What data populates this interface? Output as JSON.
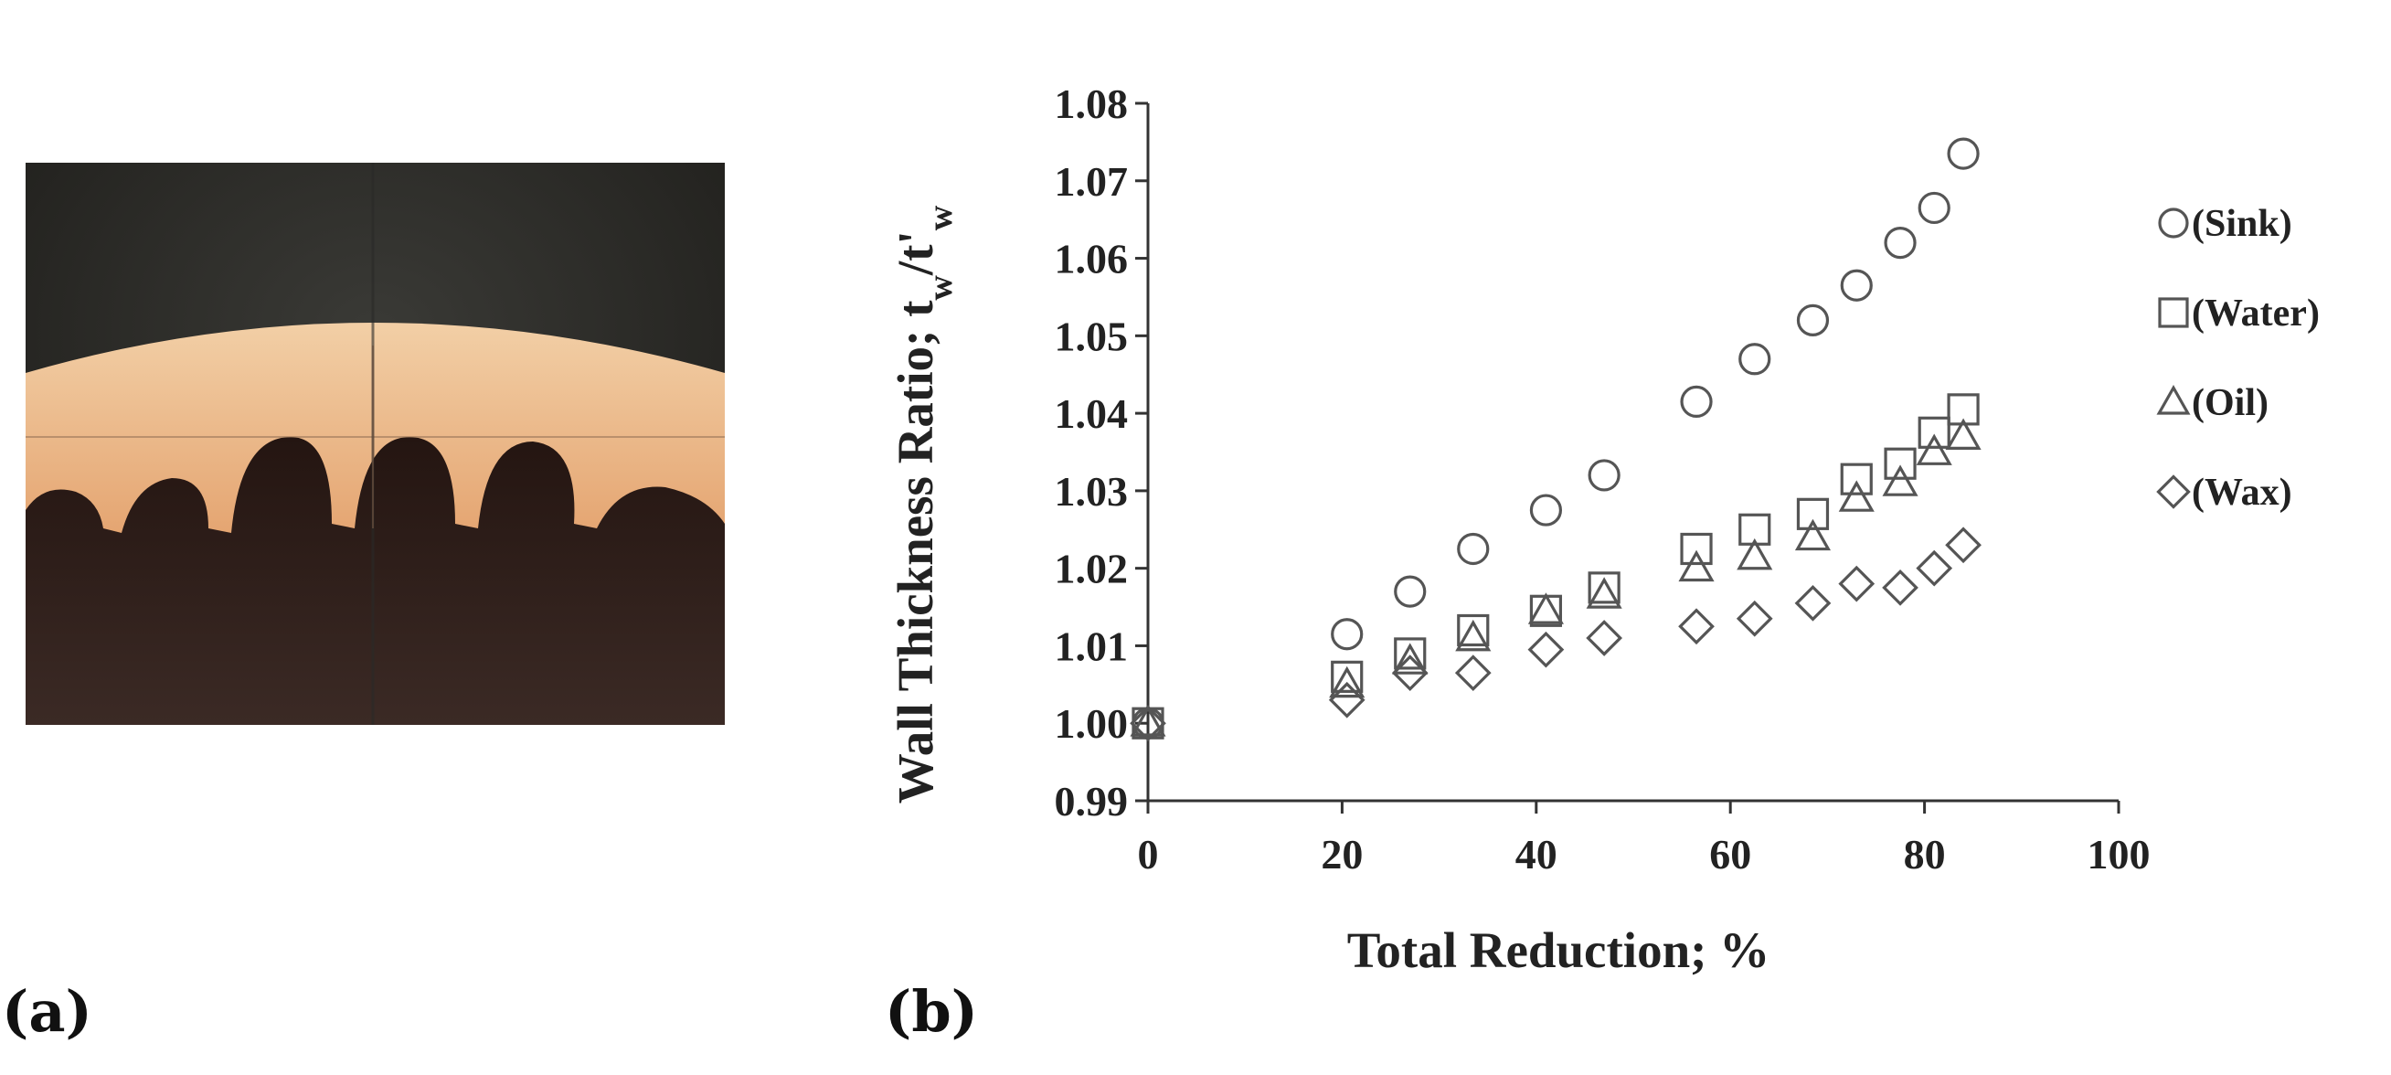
{
  "panels": {
    "a_label": "(a)",
    "b_label": "(b)"
  },
  "photo": {
    "description_icon": "gear-micrograph-image"
  },
  "chart_data": {
    "type": "scatter",
    "title": "",
    "xlabel": "Total Reduction; %",
    "ylabel_main": "Wall Thickness Ratio; t",
    "ylabel_sub1": "w",
    "ylabel_sep": "/t'",
    "ylabel_sub2": "w",
    "xlim": [
      0,
      100
    ],
    "ylim": [
      0.99,
      1.08
    ],
    "xticks": [
      0,
      20,
      40,
      60,
      80,
      100
    ],
    "yticks": [
      0.99,
      1.0,
      1.01,
      1.02,
      1.03,
      1.04,
      1.05,
      1.06,
      1.07,
      1.08
    ],
    "xtick_labels": [
      "0",
      "20",
      "40",
      "60",
      "80",
      "100"
    ],
    "ytick_labels": [
      "0.99",
      "1.00",
      "1.01",
      "1.02",
      "1.03",
      "1.04",
      "1.05",
      "1.06",
      "1.07",
      "1.08"
    ],
    "grid": false,
    "legend_position": "right",
    "series": [
      {
        "name": "(Sink)",
        "marker": "circle",
        "x": [
          0,
          20.5,
          27,
          33.5,
          41,
          47,
          56.5,
          62.5,
          68.5,
          73,
          77.5,
          81,
          84
        ],
        "y": [
          1.0,
          1.0115,
          1.017,
          1.0225,
          1.0275,
          1.032,
          1.0415,
          1.047,
          1.052,
          1.0565,
          1.062,
          1.0665,
          1.0735
        ]
      },
      {
        "name": "(Water)",
        "marker": "square",
        "x": [
          0,
          20.5,
          27,
          33.5,
          41,
          47,
          56.5,
          62.5,
          68.5,
          73,
          77.5,
          81,
          84
        ],
        "y": [
          1.0,
          1.006,
          1.009,
          1.012,
          1.0145,
          1.0175,
          1.0225,
          1.025,
          1.027,
          1.0315,
          1.0335,
          1.0375,
          1.0405
        ]
      },
      {
        "name": "(Oil)",
        "marker": "triangle",
        "x": [
          0,
          20.5,
          27,
          33.5,
          41,
          47,
          56.5,
          62.5,
          68.5,
          73,
          77.5,
          81,
          84
        ],
        "y": [
          1.0,
          1.005,
          1.008,
          1.011,
          1.0145,
          1.0165,
          1.02,
          1.0215,
          1.024,
          1.029,
          1.031,
          1.035,
          1.037
        ]
      },
      {
        "name": "(Wax)",
        "marker": "diamond",
        "x": [
          0,
          20.5,
          27,
          33.5,
          41,
          47,
          56.5,
          62.5,
          68.5,
          73,
          77.5,
          81,
          84
        ],
        "y": [
          1.0,
          1.003,
          1.0065,
          1.0065,
          1.0095,
          1.011,
          1.0125,
          1.0135,
          1.0155,
          1.018,
          1.0175,
          1.02,
          1.023
        ]
      }
    ]
  },
  "colors": {
    "marker_stroke": "#555555",
    "axis": "#333333",
    "text": "#222222"
  }
}
